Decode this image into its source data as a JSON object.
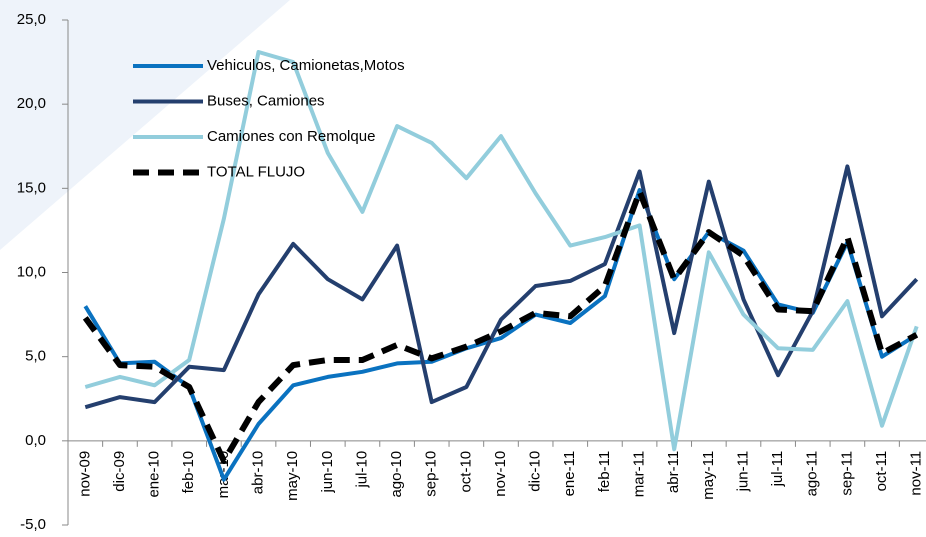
{
  "chart_data": {
    "type": "line",
    "categories": [
      "nov-09",
      "dic-09",
      "ene-10",
      "feb-10",
      "mar-10",
      "abr-10",
      "may-10",
      "jun-10",
      "jul-10",
      "ago-10",
      "sep-10",
      "oct-10",
      "nov-10",
      "dic-10",
      "ene-11",
      "feb-11",
      "mar-11",
      "abr-11",
      "may-11",
      "jun-11",
      "jul-11",
      "ago-11",
      "sep-11",
      "oct-11",
      "nov-11"
    ],
    "series": [
      {
        "name": "Vehiculos, Camionetas,Motos",
        "color": "#0a72c0",
        "values": [
          8.0,
          4.6,
          4.7,
          3.2,
          -2.3,
          1.0,
          3.3,
          3.8,
          4.1,
          4.6,
          4.7,
          5.5,
          6.1,
          7.5,
          7.0,
          8.6,
          14.9,
          9.6,
          12.4,
          11.3,
          8.1,
          7.6,
          11.8,
          5.0,
          6.3
        ]
      },
      {
        "name": "Buses, Camiones",
        "color": "#243f6e",
        "values": [
          2.0,
          2.6,
          2.3,
          4.4,
          4.2,
          8.7,
          11.7,
          9.6,
          8.4,
          11.6,
          2.3,
          3.2,
          7.2,
          9.2,
          9.5,
          10.5,
          16.0,
          6.4,
          15.4,
          8.4,
          3.9,
          7.7,
          16.3,
          7.4,
          9.6
        ]
      },
      {
        "name": "Camiones con Remolque",
        "color": "#92cddc",
        "values": [
          3.2,
          3.8,
          3.3,
          4.8,
          13.2,
          23.1,
          22.5,
          17.1,
          13.6,
          18.7,
          17.7,
          15.6,
          18.1,
          14.7,
          11.6,
          12.1,
          12.8,
          -0.5,
          11.2,
          7.5,
          5.5,
          5.4,
          8.3,
          0.9,
          6.8
        ]
      },
      {
        "name": "TOTAL FLUJO",
        "color": "#000000",
        "dashed": true,
        "values": [
          7.3,
          4.5,
          4.4,
          3.2,
          -1.2,
          2.3,
          4.5,
          4.8,
          4.8,
          5.7,
          4.9,
          5.6,
          6.5,
          7.6,
          7.4,
          9.2,
          14.8,
          9.6,
          12.4,
          11.0,
          7.8,
          7.7,
          12.1,
          5.2,
          6.3
        ]
      }
    ],
    "ylim": [
      -5,
      25
    ],
    "yticks": [
      {
        "value": -5,
        "label": "-5,0"
      },
      {
        "value": 0,
        "label": "0,0"
      },
      {
        "value": 5,
        "label": "5,0"
      },
      {
        "value": 10,
        "label": "10,0"
      },
      {
        "value": 15,
        "label": "15,0"
      },
      {
        "value": 20,
        "label": "20,0"
      },
      {
        "value": 25,
        "label": "25,0"
      }
    ]
  }
}
